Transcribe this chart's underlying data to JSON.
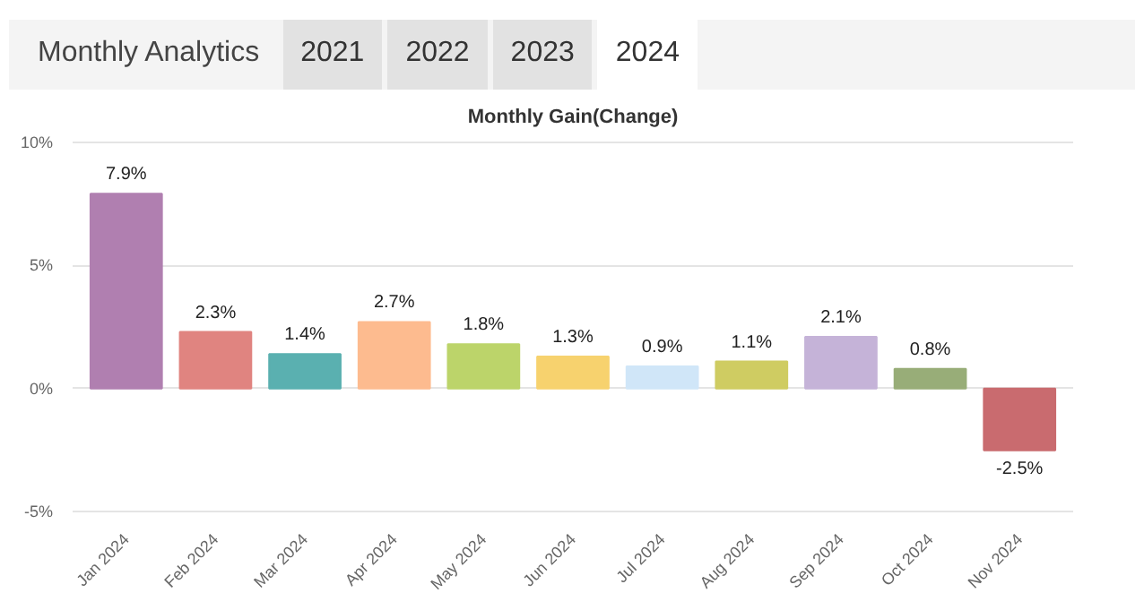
{
  "chart_data": {
    "type": "bar",
    "title": "Monthly Analytics",
    "annotations": [
      "2021",
      "2022",
      "2023",
      "2024"
    ],
    "subtitle": "Monthly Gain(Change)",
    "categories": [
      "Jan 2024",
      "Feb 2024",
      "Mar 2024",
      "Apr 2024",
      "May 2024",
      "Jun 2024",
      "Jul 2024",
      "Aug 2024",
      "Sep 2024",
      "Oct 2024",
      "Nov 2024"
    ],
    "values": [
      7.9,
      2.3,
      1.4,
      2.7,
      1.8,
      1.3,
      0.9,
      1.1,
      2.1,
      0.8,
      -2.5
    ],
    "colors": [
      "#b07fb0",
      "#e08480",
      "#5ab0b0",
      "#fdbb8f",
      "#bcd46a",
      "#f7d26e",
      "#d0e6f8",
      "#cfcc62",
      "#c5b3d8",
      "#98ad78",
      "#c96b6f"
    ],
    "value_labels": [
      "7.9%",
      "2.3%",
      "1.4%",
      "2.7%",
      "1.8%",
      "1.3%",
      "0.9%",
      "1.1%",
      "2.1%",
      "0.8%",
      "-2.5%"
    ],
    "ylim": [
      -5.2,
      10.2
    ],
    "yticks": [
      {
        "value": -5,
        "label": "-5%"
      },
      {
        "value": 0,
        "label": "0%"
      },
      {
        "value": 5,
        "label": "5%"
      },
      {
        "value": 10,
        "label": "10%"
      }
    ],
    "grid": "y"
  }
}
